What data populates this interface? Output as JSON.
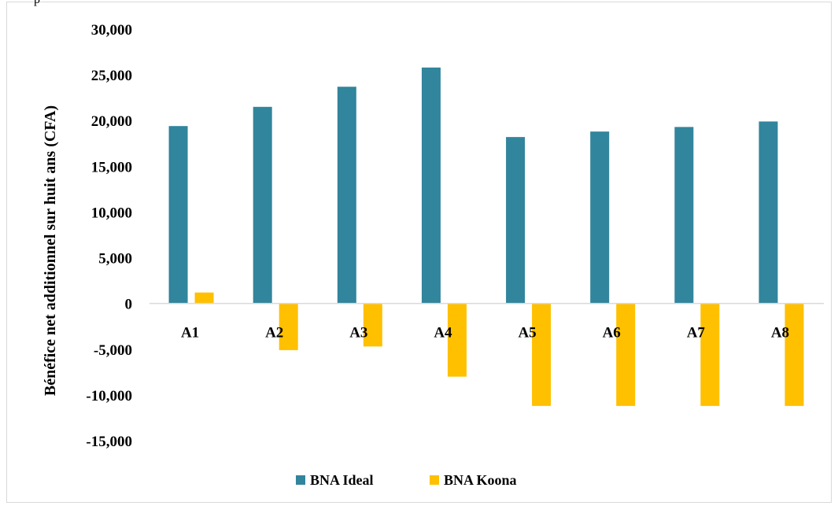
{
  "header_fragment": "p",
  "chart_data": {
    "type": "bar",
    "categories": [
      "A1",
      "A2",
      "A3",
      "A4",
      "A5",
      "A6",
      "A7",
      "A8"
    ],
    "series": [
      {
        "name": "BNA Ideal",
        "color": "#31859c",
        "values": [
          19400,
          21500,
          23700,
          25800,
          18200,
          18800,
          19300,
          19900
        ]
      },
      {
        "name": "BNA Koona",
        "color": "#ffc000",
        "values": [
          1200,
          -5100,
          -4700,
          -8000,
          -11200,
          -11200,
          -11200,
          -11200
        ]
      }
    ],
    "ylabel": "Bénéfice net additionnel sur huit ans (CFA)",
    "ylim": [
      -15000,
      30000
    ],
    "yticks": [
      30000,
      25000,
      20000,
      15000,
      10000,
      5000,
      0,
      -5000,
      -10000,
      -15000
    ],
    "ytick_labels": [
      "30,000",
      "25,000",
      "20,000",
      "15,000",
      "10,000",
      "5,000",
      "0",
      "-5,000",
      "-10,000",
      "-15,000"
    ],
    "grid": false,
    "legend_position": "bottom"
  }
}
